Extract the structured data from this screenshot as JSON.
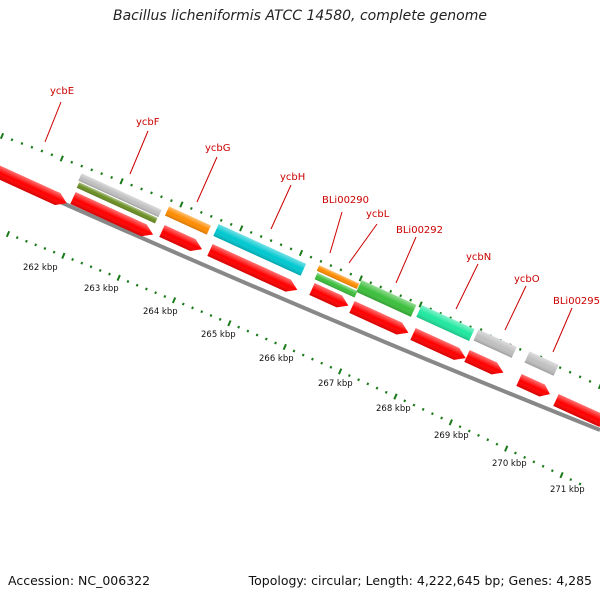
{
  "title": "Bacillus licheniformis ATCC 14580, complete genome",
  "accession": "Accession: NC_006322",
  "footer_info": "Topology: circular; Length: 4,222,645 bp; Genes: 4,285",
  "genes": [
    {
      "name": "ycbE"
    },
    {
      "name": "ycbF"
    },
    {
      "name": "ycbG"
    },
    {
      "name": "ycbH"
    },
    {
      "name": "BLi00290"
    },
    {
      "name": "ycbL"
    },
    {
      "name": "BLi00292"
    },
    {
      "name": "ycbN"
    },
    {
      "name": "ycbO"
    },
    {
      "name": "BLi00295"
    }
  ],
  "kbp_labels": [
    "262 kbp",
    "263 kbp",
    "264 kbp",
    "265 kbp",
    "266 kbp",
    "267 kbp",
    "268 kbp",
    "269 kbp",
    "270 kbp",
    "271 kbp"
  ],
  "colors": {
    "cds": "#ff0000",
    "grey": "#c0c0c0",
    "olive": "#6b8e23",
    "orange": "#ff8c00",
    "cyan": "#00c8d0",
    "green": "#3cbf3c",
    "spring": "#20e8a0",
    "backbone": "#888888",
    "tick": "#1a7a1a",
    "label": "#cc0000"
  }
}
